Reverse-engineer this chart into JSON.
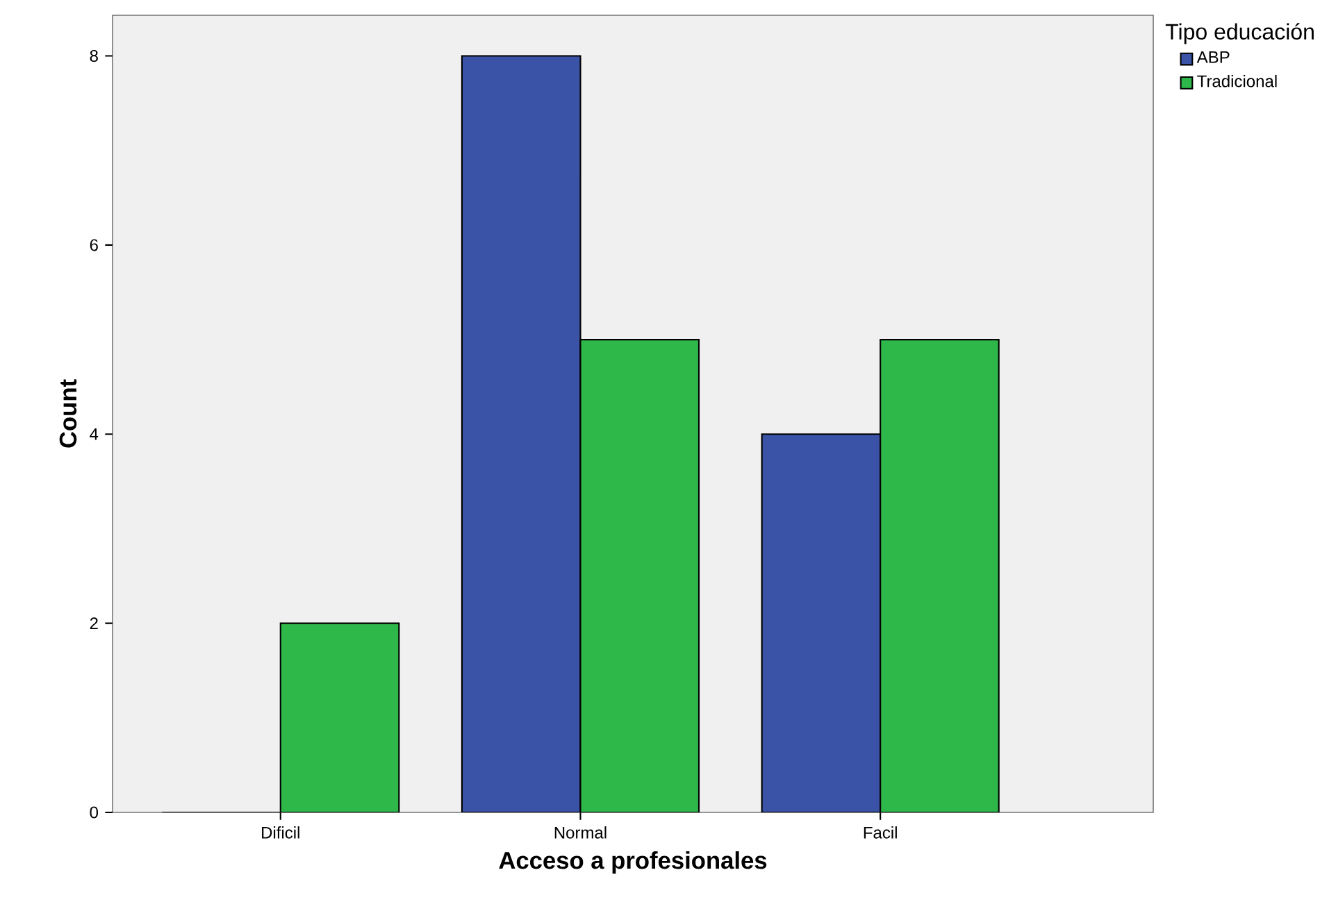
{
  "chart_data": {
    "type": "bar",
    "xlabel": "Acceso a profesionales",
    "ylabel": "Count",
    "legend_title": "Tipo educación",
    "categories": [
      "Dificil",
      "Normal",
      "Facil"
    ],
    "series": [
      {
        "name": "ABP",
        "color": "#3b53a6",
        "values": [
          0,
          8,
          4
        ]
      },
      {
        "name": "Tradicional",
        "color": "#2fb84a",
        "values": [
          2,
          5,
          5
        ]
      }
    ],
    "ylim": [
      0,
      8.43
    ],
    "yticks": [
      0,
      2,
      4,
      6,
      8
    ],
    "grid": false,
    "legend": "top right"
  }
}
